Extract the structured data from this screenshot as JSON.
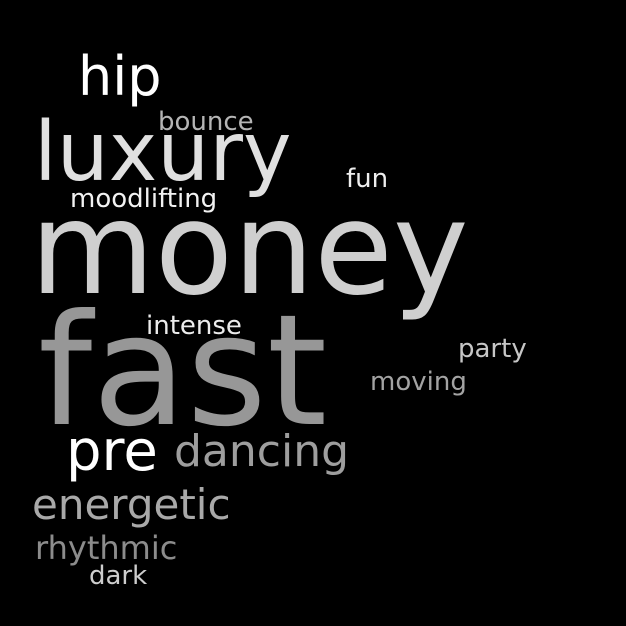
{
  "background_color": "#000000",
  "words": [
    {
      "id": "money",
      "text": "money",
      "color": "#cfcfcf"
    },
    {
      "id": "fast",
      "text": "fast",
      "color": "#979797"
    },
    {
      "id": "luxury",
      "text": "luxury",
      "color": "#e0e0e0"
    },
    {
      "id": "hip",
      "text": "hip",
      "color": "#ffffff"
    },
    {
      "id": "pre",
      "text": "pre",
      "color": "#ffffff"
    },
    {
      "id": "dancing",
      "text": "dancing",
      "color": "#9e9e9e"
    },
    {
      "id": "energetic",
      "text": "energetic",
      "color": "#a9a9a9"
    },
    {
      "id": "rhythmic",
      "text": "rhythmic",
      "color": "#8c8c8c"
    },
    {
      "id": "moodlifting",
      "text": "moodlifting",
      "color": "#f2f2f2"
    },
    {
      "id": "bounce",
      "text": "bounce",
      "color": "#b5b5b5"
    },
    {
      "id": "fun",
      "text": "fun",
      "color": "#eeeeee"
    },
    {
      "id": "intense",
      "text": "intense",
      "color": "#ececec"
    },
    {
      "id": "party",
      "text": "party",
      "color": "#c6c6c6"
    },
    {
      "id": "moving",
      "text": "moving",
      "color": "#a3a3a3"
    },
    {
      "id": "dark",
      "text": "dark",
      "color": "#cdcdcd"
    }
  ]
}
